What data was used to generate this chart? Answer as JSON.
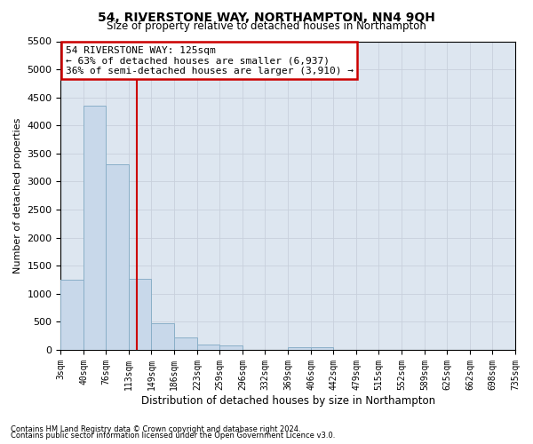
{
  "title": "54, RIVERSTONE WAY, NORTHAMPTON, NN4 9QH",
  "subtitle": "Size of property relative to detached houses in Northampton",
  "xlabel": "Distribution of detached houses by size in Northampton",
  "ylabel": "Number of detached properties",
  "footnote1": "Contains HM Land Registry data © Crown copyright and database right 2024.",
  "footnote2": "Contains public sector information licensed under the Open Government Licence v3.0.",
  "annotation_line1": "54 RIVERSTONE WAY: 125sqm",
  "annotation_line2": "← 63% of detached houses are smaller (6,937)",
  "annotation_line3": "36% of semi-detached houses are larger (3,910) →",
  "property_size": 125,
  "bin_edges": [
    3,
    40,
    76,
    113,
    149,
    186,
    223,
    259,
    296,
    332,
    369,
    406,
    442,
    479,
    515,
    552,
    589,
    625,
    662,
    698,
    735
  ],
  "bin_counts": [
    1250,
    4350,
    3300,
    1270,
    480,
    220,
    100,
    75,
    0,
    0,
    50,
    50,
    0,
    0,
    0,
    0,
    0,
    0,
    0,
    0
  ],
  "bar_color": "#c8d8ea",
  "bar_edge_color": "#8aafc8",
  "vline_color": "#cc0000",
  "annotation_box_color": "#ffffff",
  "annotation_box_edge": "#cc0000",
  "ylim": [
    0,
    5500
  ],
  "yticks": [
    0,
    500,
    1000,
    1500,
    2000,
    2500,
    3000,
    3500,
    4000,
    4500,
    5000,
    5500
  ],
  "grid_color": "#c8d0dc",
  "background_color": "#dde6f0"
}
